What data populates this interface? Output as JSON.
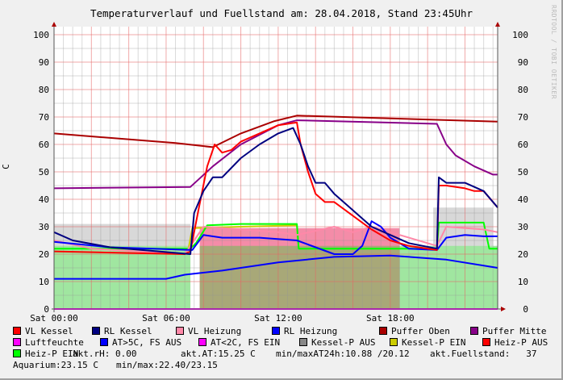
{
  "chart_data": {
    "type": "line",
    "title": "Temperaturverlauf und Fuellstand am: 28.04.2018, Stand 23:45Uhr",
    "ylabel": "C",
    "watermark": "RRDTOOL / TOBI OETIKER",
    "ylim": [
      0,
      100
    ],
    "yticks": [
      0,
      10,
      20,
      30,
      40,
      50,
      60,
      70,
      80,
      90,
      100
    ],
    "xlim_hours": [
      0,
      23.75
    ],
    "xticks": [
      {
        "h": 0,
        "label": "Sat 00:00"
      },
      {
        "h": 6,
        "label": "Sat 06:00"
      },
      {
        "h": 12,
        "label": "Sat 12:00"
      },
      {
        "h": 18,
        "label": "Sat 18:00"
      }
    ],
    "grid": true,
    "areas": [
      {
        "color": "#d8d8d8",
        "points": [
          [
            0,
            31
          ],
          [
            7.3,
            31
          ],
          [
            7.3,
            0
          ],
          [
            20.3,
            0
          ],
          [
            20.3,
            37
          ],
          [
            23.5,
            37
          ],
          [
            23.5,
            0
          ]
        ]
      },
      {
        "color": "#f48ca8",
        "points": [
          [
            0,
            0
          ],
          [
            7.8,
            0
          ],
          [
            7.8,
            29.5
          ],
          [
            18.5,
            29.5
          ],
          [
            18.5,
            0
          ]
        ]
      },
      {
        "color": "#a0e6a0",
        "points": [
          [
            0,
            23
          ],
          [
            7.3,
            23
          ],
          [
            7.3,
            0
          ],
          [
            18.5,
            0
          ],
          [
            18.5,
            23
          ],
          [
            23.75,
            23
          ]
        ]
      },
      {
        "color": "#a8a878",
        "points": [
          [
            0,
            0
          ],
          [
            7.8,
            0
          ],
          [
            7.8,
            23
          ],
          [
            18.5,
            23
          ],
          [
            18.5,
            0
          ]
        ]
      }
    ],
    "series": [
      {
        "name": "Luftfeuchte",
        "color": "#ff00ff",
        "points": [
          [
            0,
            0
          ],
          [
            23.75,
            0
          ]
        ]
      },
      {
        "name": "AT>5C, FS AUS",
        "color": "#0000ff",
        "points": [
          [
            0,
            11
          ],
          [
            3,
            11
          ],
          [
            6,
            11
          ],
          [
            7,
            12.5
          ],
          [
            9,
            14
          ],
          [
            12,
            17
          ],
          [
            15,
            19
          ],
          [
            18,
            19.5
          ],
          [
            21,
            18
          ],
          [
            23.75,
            15
          ]
        ]
      },
      {
        "name": "Kessel-P EIN",
        "color": "#cccc00",
        "points": [
          [
            7.2,
            22
          ],
          [
            7.4,
            29.5
          ],
          [
            10,
            30
          ],
          [
            13,
            30.5
          ],
          [
            13.1,
            22
          ]
        ]
      },
      {
        "name": "Heiz-P EIN",
        "color": "#00ff00",
        "points": [
          [
            0,
            22
          ],
          [
            7.3,
            22
          ],
          [
            7.6,
            24
          ],
          [
            8.2,
            30.5
          ],
          [
            10,
            31
          ],
          [
            13,
            31
          ],
          [
            13.1,
            22
          ],
          [
            20.5,
            22
          ],
          [
            20.6,
            31.5
          ],
          [
            23,
            31.5
          ],
          [
            23.3,
            22
          ],
          [
            23.75,
            22
          ]
        ]
      },
      {
        "name": "VL Heizung",
        "color": "#ff88a8",
        "points": [
          [
            0,
            25
          ],
          [
            2,
            22
          ],
          [
            7,
            20
          ],
          [
            8,
            30
          ],
          [
            10,
            29
          ],
          [
            12,
            28
          ],
          [
            13,
            27
          ],
          [
            15,
            30
          ],
          [
            16,
            28
          ],
          [
            17,
            30
          ],
          [
            18,
            28
          ],
          [
            19,
            26
          ],
          [
            20.5,
            23
          ],
          [
            21,
            30
          ],
          [
            23,
            29
          ],
          [
            23.75,
            28
          ]
        ]
      },
      {
        "name": "RL Heizung",
        "color": "#0000ff",
        "points": [
          [
            0,
            24.5
          ],
          [
            3,
            22.5
          ],
          [
            7.4,
            21.5
          ],
          [
            8,
            27
          ],
          [
            9,
            26
          ],
          [
            11,
            26
          ],
          [
            13,
            25
          ],
          [
            15,
            20
          ],
          [
            16,
            20
          ],
          [
            16.5,
            23
          ],
          [
            17,
            32
          ],
          [
            17.5,
            30
          ],
          [
            18,
            26
          ],
          [
            19,
            22
          ],
          [
            20.5,
            21.5
          ],
          [
            21,
            26
          ],
          [
            22,
            27
          ],
          [
            23,
            26.5
          ],
          [
            23.75,
            26.5
          ]
        ]
      },
      {
        "name": "Puffer Oben",
        "color": "#aa0000",
        "points": [
          [
            0,
            64
          ],
          [
            6.5,
            60.5
          ],
          [
            8.5,
            59
          ],
          [
            10,
            64
          ],
          [
            11.8,
            68.5
          ],
          [
            13,
            70.5
          ],
          [
            18,
            69.5
          ],
          [
            23.75,
            68.3
          ]
        ]
      },
      {
        "name": "Puffer Mitte",
        "color": "#880088",
        "points": [
          [
            0,
            44
          ],
          [
            7.3,
            44.5
          ],
          [
            8.5,
            52
          ],
          [
            10,
            60
          ],
          [
            12,
            67
          ],
          [
            13,
            68.8
          ],
          [
            20.5,
            67.5
          ],
          [
            21,
            60
          ],
          [
            21.5,
            56
          ],
          [
            22.5,
            52
          ],
          [
            23.5,
            49
          ],
          [
            23.75,
            49
          ]
        ]
      },
      {
        "name": "VL Kessel",
        "color": "#ff0000",
        "points": [
          [
            0,
            21
          ],
          [
            7,
            20
          ],
          [
            7.3,
            21
          ],
          [
            7.7,
            35
          ],
          [
            8.2,
            52
          ],
          [
            8.6,
            60
          ],
          [
            9,
            57
          ],
          [
            9.5,
            58
          ],
          [
            10,
            61
          ],
          [
            11,
            64
          ],
          [
            12,
            67
          ],
          [
            13,
            68
          ],
          [
            13.2,
            60
          ],
          [
            13.6,
            50
          ],
          [
            14,
            42
          ],
          [
            14.5,
            39
          ],
          [
            15,
            39
          ],
          [
            16,
            34
          ],
          [
            17,
            29
          ],
          [
            18,
            25
          ],
          [
            19,
            23
          ],
          [
            20.5,
            21.5
          ],
          [
            20.6,
            45
          ],
          [
            21,
            45
          ],
          [
            22,
            44
          ],
          [
            22.5,
            43
          ],
          [
            23,
            43
          ],
          [
            23.75,
            37
          ]
        ]
      },
      {
        "name": "RL Kessel",
        "color": "#000080",
        "points": [
          [
            0,
            28
          ],
          [
            1,
            25
          ],
          [
            3,
            22.5
          ],
          [
            7.3,
            20
          ],
          [
            7.5,
            35
          ],
          [
            8,
            43
          ],
          [
            8.5,
            48
          ],
          [
            9,
            48
          ],
          [
            10,
            55
          ],
          [
            11,
            60
          ],
          [
            12,
            64
          ],
          [
            12.8,
            66
          ],
          [
            13.2,
            60
          ],
          [
            13.6,
            52
          ],
          [
            14,
            46
          ],
          [
            14.5,
            46
          ],
          [
            15,
            42
          ],
          [
            16,
            36
          ],
          [
            17,
            30
          ],
          [
            18,
            27
          ],
          [
            19,
            24
          ],
          [
            20.5,
            22
          ],
          [
            20.6,
            48
          ],
          [
            21,
            46
          ],
          [
            22,
            46
          ],
          [
            23,
            43
          ],
          [
            23.75,
            37
          ]
        ]
      }
    ]
  },
  "legend": {
    "items": [
      {
        "label": "VL Kessel",
        "color": "#ff0000"
      },
      {
        "label": "RL Kessel",
        "color": "#000080"
      },
      {
        "label": "VL Heizung",
        "color": "#ff88a8"
      },
      {
        "label": "RL Heizung",
        "color": "#0000ff"
      },
      {
        "label": "Puffer Oben",
        "color": "#aa0000"
      },
      {
        "label": "Puffer Mitte",
        "color": "#880088"
      },
      {
        "label": "Luftfeuchte",
        "color": "#ff00ff"
      },
      {
        "label": "AT>5C, FS AUS",
        "color": "#0000ff"
      },
      {
        "label": "AT<2C, FS EIN",
        "color": "#ff00ff"
      },
      {
        "label": "Kessel-P AUS",
        "color": "#888888"
      },
      {
        "label": "Kessel-P EIN",
        "color": "#cccc00"
      },
      {
        "label": "Heiz-P AUS",
        "color": "#ff0000"
      },
      {
        "label": "Heiz-P EIN",
        "color": "#00ff00"
      }
    ],
    "akt_rh": "akt.rH: 0.00",
    "akt_at": "akt.AT:15.25 C",
    "minmax_at": "min/maxAT24h:10.88 /20.12",
    "fuellstand": "akt.Fuellstand:   37",
    "aquarium": "Aquarium:23.15 C",
    "aquarium_minmax": "min/max:22.40/23.15"
  }
}
